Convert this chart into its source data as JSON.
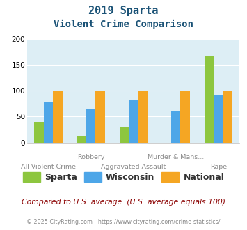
{
  "title_line1": "2019 Sparta",
  "title_line2": "Violent Crime Comparison",
  "categories": [
    "All Violent Crime",
    "Robbery",
    "Aggravated Assault",
    "Murder & Mans...",
    "Rape"
  ],
  "top_labels": [
    "",
    "Robbery",
    "",
    "Murder & Mans...",
    ""
  ],
  "bottom_labels": [
    "All Violent Crime",
    "",
    "Aggravated Assault",
    "",
    "Rape"
  ],
  "sparta_values": [
    40,
    13,
    30,
    0,
    168
  ],
  "wisconsin_values": [
    78,
    65,
    82,
    62,
    93
  ],
  "national_values": [
    100,
    100,
    100,
    100,
    100
  ],
  "sparta_color": "#8dc63f",
  "wisconsin_color": "#4da6e8",
  "national_color": "#f5a623",
  "bg_color": "#ddeef5",
  "ylim": [
    0,
    200
  ],
  "yticks": [
    0,
    50,
    100,
    150,
    200
  ],
  "title_color": "#1a5276",
  "legend_labels": [
    "Sparta",
    "Wisconsin",
    "National"
  ],
  "footnote1": "Compared to U.S. average. (U.S. average equals 100)",
  "footnote2": "© 2025 CityRating.com - https://www.cityrating.com/crime-statistics/",
  "footnote1_color": "#8B0000",
  "footnote2_color": "#888888"
}
